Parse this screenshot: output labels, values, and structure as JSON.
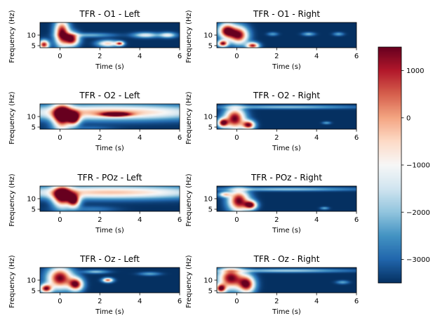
{
  "figure": {
    "colorbar": {
      "ticks": [
        1000,
        0,
        -1000,
        -2000,
        -3000
      ],
      "tick_labels": [
        "1000",
        "0",
        "−1000",
        "−2000",
        "−3000"
      ],
      "range": [
        -3500,
        1500
      ],
      "colormap": "RdBu_r",
      "colors": [
        "#053061",
        "#2166ac",
        "#4393c3",
        "#92c5de",
        "#d1e5f0",
        "#f7f7f7",
        "#fddbc7",
        "#f4a582",
        "#d6604d",
        "#b2182b",
        "#67001f"
      ]
    }
  },
  "chart_data": [
    {
      "type": "heatmap",
      "title": "TFR - O1 - Left",
      "xlabel": "Time (s)",
      "ylabel": "Frequency (Hz)",
      "x_ticks": [
        0,
        2,
        4,
        6
      ],
      "x_tick_labels": [
        "0",
        "2",
        "4",
        "6"
      ],
      "y_ticks": [
        5,
        10
      ],
      "y_tick_labels": [
        "5",
        "10"
      ],
      "xlim": [
        -1,
        6
      ],
      "ylim": [
        4,
        16
      ],
      "blobs": [
        {
          "t": 0.1,
          "f": 11,
          "rt": 0.35,
          "rf": 6,
          "v": 1500
        },
        {
          "t": 0.6,
          "f": 8,
          "rt": 0.35,
          "rf": 3,
          "v": 1300
        },
        {
          "t": -0.8,
          "f": 5.5,
          "rt": 0.25,
          "rf": 2,
          "v": 1100
        },
        {
          "t": 2.4,
          "f": 6,
          "rt": 0.5,
          "rf": 1.5,
          "v": -500
        },
        {
          "t": 3.0,
          "f": 6,
          "rt": 0.2,
          "rf": 1,
          "v": 500
        },
        {
          "t": 4.3,
          "f": 10,
          "rt": 0.6,
          "rf": 1.2,
          "v": -1200
        },
        {
          "t": 5.4,
          "f": 10,
          "rt": 0.4,
          "rf": 1.2,
          "v": -1100
        },
        {
          "t": 1.5,
          "f": 10,
          "rt": 1.2,
          "rf": 1,
          "v": -2200
        }
      ]
    },
    {
      "type": "heatmap",
      "title": "TFR - O1 - Right",
      "xlabel": "Time (s)",
      "ylabel": "Frequency (Hz)",
      "x_ticks": [
        0,
        2,
        4,
        6
      ],
      "x_tick_labels": [
        "0",
        "2",
        "4",
        "6"
      ],
      "y_ticks": [
        5,
        10
      ],
      "y_tick_labels": [
        "5",
        "10"
      ],
      "xlim": [
        -1,
        6
      ],
      "ylim": [
        4,
        16
      ],
      "blobs": [
        {
          "t": -0.5,
          "f": 12,
          "rt": 0.4,
          "rf": 3.5,
          "v": 1500
        },
        {
          "t": 0.1,
          "f": 10,
          "rt": 0.45,
          "rf": 4,
          "v": 1400
        },
        {
          "t": 0.8,
          "f": 5,
          "rt": 0.3,
          "rf": 1.5,
          "v": 1000
        },
        {
          "t": -0.7,
          "f": 6,
          "rt": 0.25,
          "rf": 1.5,
          "v": 1200
        },
        {
          "t": 1.8,
          "f": 10.5,
          "rt": 0.25,
          "rf": 0.8,
          "v": -2400
        },
        {
          "t": 3.6,
          "f": 10.5,
          "rt": 0.3,
          "rf": 0.8,
          "v": -2100
        },
        {
          "t": 5.1,
          "f": 10.5,
          "rt": 0.25,
          "rf": 0.8,
          "v": -2300
        }
      ]
    },
    {
      "type": "heatmap",
      "title": "TFR - O2 - Left",
      "xlabel": "Time (s)",
      "ylabel": "Frequency (Hz)",
      "x_ticks": [
        0,
        2,
        4,
        6
      ],
      "x_tick_labels": [
        "0",
        "2",
        "4",
        "6"
      ],
      "y_ticks": [
        5,
        10
      ],
      "y_tick_labels": [
        "5",
        "10"
      ],
      "xlim": [
        -1,
        6
      ],
      "ylim": [
        4,
        16
      ],
      "blobs": [
        {
          "t": 2.5,
          "f": 12,
          "rt": 5,
          "rf": 3.5,
          "v": -100
        },
        {
          "t": 0.1,
          "f": 10,
          "rt": 0.45,
          "rf": 6,
          "v": 1500
        },
        {
          "t": 0.7,
          "f": 9,
          "rt": 0.3,
          "rf": 3,
          "v": 1100
        },
        {
          "t": -0.5,
          "f": 5,
          "rt": 0.7,
          "rf": 1.5,
          "v": -3400
        },
        {
          "t": 1.5,
          "f": 4.5,
          "rt": 1.2,
          "rf": 1.2,
          "v": -3000
        },
        {
          "t": 2.8,
          "f": 11,
          "rt": 0.7,
          "rf": 1,
          "v": 400
        }
      ]
    },
    {
      "type": "heatmap",
      "title": "TFR - O2 - Right",
      "xlabel": "Time (s)",
      "ylabel": "Frequency (Hz)",
      "x_ticks": [
        0,
        2,
        4,
        6
      ],
      "x_tick_labels": [
        "0",
        "2",
        "4",
        "6"
      ],
      "y_ticks": [
        5,
        10
      ],
      "y_tick_labels": [
        "5",
        "10"
      ],
      "xlim": [
        -1,
        6
      ],
      "ylim": [
        4,
        16
      ],
      "blobs": [
        {
          "t": -0.1,
          "f": 9,
          "rt": 0.5,
          "rf": 5,
          "v": 1500
        },
        {
          "t": 0.6,
          "f": 6,
          "rt": 0.3,
          "rf": 2,
          "v": 1100
        },
        {
          "t": -0.7,
          "f": 7,
          "rt": 0.25,
          "rf": 2,
          "v": 1000
        },
        {
          "t": 2.5,
          "f": 14.5,
          "rt": 3.5,
          "rf": 0.8,
          "v": -2000
        },
        {
          "t": 4.5,
          "f": 7,
          "rt": 0.2,
          "rf": 0.6,
          "v": -2300
        }
      ]
    },
    {
      "type": "heatmap",
      "title": "TFR - POz - Left",
      "xlabel": "Time (s)",
      "ylabel": "Frequency (Hz)",
      "x_ticks": [
        0,
        2,
        4,
        6
      ],
      "x_tick_labels": [
        "0",
        "2",
        "4",
        "6"
      ],
      "y_ticks": [
        5,
        10
      ],
      "y_tick_labels": [
        "5",
        "10"
      ],
      "xlim": [
        -1,
        6
      ],
      "ylim": [
        4,
        16
      ],
      "blobs": [
        {
          "t": 2.5,
          "f": 13,
          "rt": 5,
          "rf": 3,
          "v": -300
        },
        {
          "t": 0.1,
          "f": 11,
          "rt": 0.45,
          "rf": 5,
          "v": 1500
        },
        {
          "t": 0.7,
          "f": 9,
          "rt": 0.3,
          "rf": 3,
          "v": 1200
        },
        {
          "t": -0.6,
          "f": 5,
          "rt": 0.6,
          "rf": 1.5,
          "v": -3400
        },
        {
          "t": 1.6,
          "f": 5,
          "rt": 1.2,
          "rf": 1.5,
          "v": -2800
        }
      ]
    },
    {
      "type": "heatmap",
      "title": "TFR - POz - Right",
      "xlabel": "Time (s)",
      "ylabel": "Frequency (Hz)",
      "x_ticks": [
        0,
        2,
        4,
        6
      ],
      "x_tick_labels": [
        "0",
        "2",
        "4",
        "6"
      ],
      "y_ticks": [
        5,
        10
      ],
      "y_tick_labels": [
        "5",
        "10"
      ],
      "xlim": [
        -1,
        6
      ],
      "ylim": [
        4,
        16
      ],
      "blobs": [
        {
          "t": 0.1,
          "f": 9,
          "rt": 0.5,
          "rf": 5,
          "v": 1500
        },
        {
          "t": 0.7,
          "f": 7,
          "rt": 0.3,
          "rf": 2,
          "v": 1100
        },
        {
          "t": -0.6,
          "f": 12,
          "rt": 0.3,
          "rf": 1.2,
          "v": -800
        },
        {
          "t": 2.5,
          "f": 14.5,
          "rt": 3.5,
          "rf": 0.8,
          "v": -1900
        },
        {
          "t": 4.4,
          "f": 5.5,
          "rt": 0.2,
          "rf": 0.6,
          "v": -2200
        }
      ]
    },
    {
      "type": "heatmap",
      "title": "TFR - Oz - Left",
      "xlabel": "Time (s)",
      "ylabel": "Frequency (Hz)",
      "x_ticks": [
        0,
        2,
        4,
        6
      ],
      "x_tick_labels": [
        "0",
        "2",
        "4",
        "6"
      ],
      "y_ticks": [
        5,
        10
      ],
      "y_tick_labels": [
        "5",
        "10"
      ],
      "xlim": [
        -1,
        6
      ],
      "ylim": [
        4,
        16
      ],
      "blobs": [
        {
          "t": 0.0,
          "f": 11,
          "rt": 0.6,
          "rf": 5,
          "v": 1500
        },
        {
          "t": 0.8,
          "f": 8,
          "rt": 0.35,
          "rf": 3,
          "v": 1300
        },
        {
          "t": -0.7,
          "f": 6,
          "rt": 0.3,
          "rf": 2,
          "v": 1100
        },
        {
          "t": 2.4,
          "f": 10,
          "rt": 0.25,
          "rf": 1,
          "v": 500
        },
        {
          "t": 4.5,
          "f": 13,
          "rt": 0.5,
          "rf": 0.8,
          "v": -2300
        },
        {
          "t": 1.8,
          "f": 14,
          "rt": 0.6,
          "rf": 0.8,
          "v": -2000
        }
      ]
    },
    {
      "type": "heatmap",
      "title": "TFR - Oz - Right",
      "xlabel": "Time (s)",
      "ylabel": "Frequency (Hz)",
      "x_ticks": [
        0,
        2,
        4,
        6
      ],
      "x_tick_labels": [
        "0",
        "2",
        "4",
        "6"
      ],
      "y_ticks": [
        5,
        10
      ],
      "y_tick_labels": [
        "5",
        "10"
      ],
      "xlim": [
        -1,
        6
      ],
      "ylim": [
        4,
        16
      ],
      "blobs": [
        {
          "t": -0.3,
          "f": 11,
          "rt": 0.6,
          "rf": 5,
          "v": 1500
        },
        {
          "t": 0.5,
          "f": 8,
          "rt": 0.4,
          "rf": 4,
          "v": 1300
        },
        {
          "t": -0.8,
          "f": 6,
          "rt": 0.25,
          "rf": 2,
          "v": 1100
        },
        {
          "t": 2.5,
          "f": 14.5,
          "rt": 3.0,
          "rf": 0.8,
          "v": -1800
        },
        {
          "t": 5.3,
          "f": 9,
          "rt": 0.3,
          "rf": 0.8,
          "v": -2300
        }
      ]
    }
  ]
}
